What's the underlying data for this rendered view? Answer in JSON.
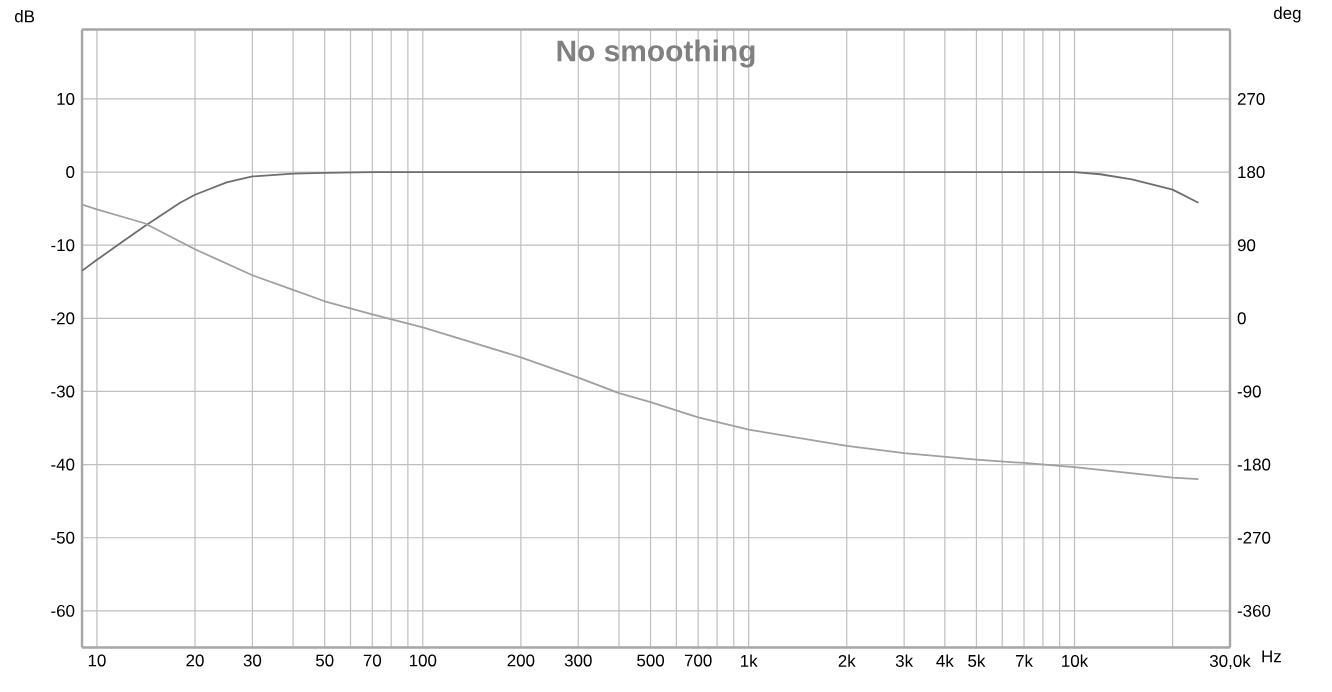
{
  "chart_data": {
    "type": "line",
    "title": "No smoothing",
    "xlabel": "Hz",
    "ylabel": "dB",
    "y2label": "deg",
    "log": "x",
    "grid": true,
    "xlim": [
      9,
      30000
    ],
    "ylim": [
      -65,
      19.5
    ],
    "y2lim": [
      -405,
      355.5
    ],
    "xticks": [
      10,
      20,
      30,
      {
        "value": 40,
        "label": null
      },
      50,
      {
        "value": 60,
        "label": null
      },
      70,
      {
        "value": 80,
        "label": null
      },
      {
        "value": 90,
        "label": null
      },
      100,
      200,
      300,
      {
        "value": 400,
        "label": null
      },
      500,
      {
        "value": 600,
        "label": null
      },
      700,
      {
        "value": 800,
        "label": null
      },
      {
        "value": 900,
        "label": null
      },
      {
        "value": 1000,
        "label": "1k"
      },
      {
        "value": 2000,
        "label": "2k"
      },
      {
        "value": 3000,
        "label": "3k"
      },
      {
        "value": 4000,
        "label": "4k"
      },
      {
        "value": 5000,
        "label": "5k"
      },
      {
        "value": 6000,
        "label": null
      },
      {
        "value": 7000,
        "label": "7k"
      },
      {
        "value": 8000,
        "label": null
      },
      {
        "value": 9000,
        "label": null
      },
      {
        "value": 10000,
        "label": "10k"
      },
      {
        "value": 20000,
        "label": null
      },
      {
        "value": 30000,
        "label": "30,0k"
      }
    ],
    "yticks": [
      -60,
      -50,
      -40,
      -30,
      -20,
      -10,
      0,
      10
    ],
    "y2ticks": [
      -360,
      -270,
      -180,
      -90,
      0,
      90,
      180,
      270
    ],
    "series": [
      {
        "color": "#6e6e6e",
        "axis": "y",
        "x": [
          9,
          10,
          12,
          14,
          16,
          18,
          20,
          25,
          30,
          40,
          50,
          70,
          100,
          1000,
          10000,
          12000,
          15000,
          20000,
          24000
        ],
        "values": [
          -13.5,
          -12,
          -9.5,
          -7.4,
          -5.7,
          -4.2,
          -3.1,
          -1.4,
          -0.6,
          -0.2,
          -0.1,
          0,
          0,
          0,
          0,
          -0.3,
          -1.0,
          -2.4,
          -4.2
        ]
      },
      {
        "color": "#a0a0a0",
        "axis": "y2",
        "x": [
          9,
          10,
          14,
          20,
          30,
          40,
          50,
          70,
          100,
          200,
          300,
          400,
          500,
          700,
          1000,
          2000,
          3000,
          5000,
          7000,
          10000,
          20000,
          24000
        ],
        "values": [
          140,
          134,
          117,
          85,
          53,
          35,
          21,
          5,
          -11,
          -48,
          -73,
          -92,
          -103,
          -122,
          -137,
          -157,
          -166,
          -174,
          -178,
          -183,
          -196,
          -198
        ]
      }
    ]
  }
}
